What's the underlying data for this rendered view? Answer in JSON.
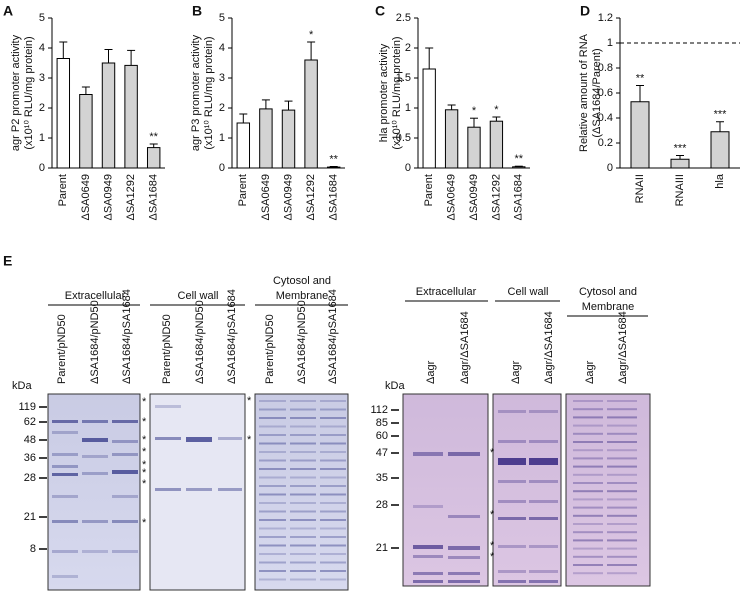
{
  "chart_data": [
    {
      "type": "bar",
      "panel": "A",
      "ylabel": [
        "agr P2 promoter activity",
        "(x10¹⁰ RLU/mg protein)"
      ],
      "categories": [
        "Parent",
        "ΔSA0649",
        "ΔSA0949",
        "ΔSA1292",
        "ΔSA1684"
      ],
      "values": [
        3.65,
        2.45,
        3.5,
        3.42,
        0.68
      ],
      "errors": [
        0.55,
        0.25,
        0.45,
        0.5,
        0.12
      ],
      "colors": [
        "#ffffff",
        "#d3d3d3",
        "#d3d3d3",
        "#d3d3d3",
        "#d3d3d3"
      ],
      "ylim": [
        0,
        5
      ],
      "yticks": [
        0,
        1,
        2,
        3,
        4,
        5
      ],
      "annotations": [
        null,
        null,
        null,
        null,
        "**"
      ]
    },
    {
      "type": "bar",
      "panel": "B",
      "ylabel": [
        "agr P3 promoter activity",
        "(x10¹⁰ RLU/mg protein)"
      ],
      "categories": [
        "Parent",
        "ΔSA0649",
        "ΔSA0949",
        "ΔSA1292",
        "ΔSA1684"
      ],
      "values": [
        1.5,
        1.97,
        1.93,
        3.6,
        0.03
      ],
      "errors": [
        0.3,
        0.3,
        0.3,
        0.6,
        0.02
      ],
      "colors": [
        "#ffffff",
        "#d3d3d3",
        "#d3d3d3",
        "#d3d3d3",
        "#d3d3d3"
      ],
      "ylim": [
        0,
        5
      ],
      "yticks": [
        0,
        1,
        2,
        3,
        4,
        5
      ],
      "annotations": [
        null,
        null,
        null,
        "*",
        "**"
      ]
    },
    {
      "type": "bar",
      "panel": "C",
      "ylabel": [
        "hla promoter activity",
        "(x10¹⁰ RLU/mg protein)"
      ],
      "categories": [
        "Parent",
        "ΔSA0649",
        "ΔSA0949",
        "ΔSA1292",
        "ΔSA1684"
      ],
      "values": [
        1.65,
        0.97,
        0.68,
        0.78,
        0.02
      ],
      "errors": [
        0.35,
        0.08,
        0.15,
        0.07,
        0.01
      ],
      "colors": [
        "#ffffff",
        "#d3d3d3",
        "#d3d3d3",
        "#d3d3d3",
        "#d3d3d3"
      ],
      "ylim": [
        0,
        2.5
      ],
      "yticks": [
        0,
        0.5,
        1,
        1.5,
        2,
        2.5
      ],
      "annotations": [
        null,
        null,
        "*",
        "*",
        "**"
      ]
    },
    {
      "type": "bar",
      "panel": "D",
      "ylabel": [
        "Relative amount of RNA",
        "(ΔSA1684/Parent)"
      ],
      "categories": [
        "RNAII",
        "RNAIII",
        "hla"
      ],
      "values": [
        0.53,
        0.07,
        0.29
      ],
      "errors": [
        0.13,
        0.03,
        0.08
      ],
      "colors": [
        "#d3d3d3",
        "#d3d3d3",
        "#d3d3d3"
      ],
      "ylim": [
        0,
        1.2
      ],
      "yticks": [
        0,
        0.2,
        0.4,
        0.6,
        0.8,
        1,
        1.2
      ],
      "annotations": [
        "**",
        "***",
        "***"
      ],
      "reference_line": 1
    }
  ],
  "panel_e": {
    "label": "E",
    "left": {
      "groups": [
        "Extracellular",
        "Cell wall",
        [
          "Cytosol and",
          "Membrane"
        ]
      ],
      "lanes": [
        "Parent/pND50",
        "ΔSA1684/pND50",
        "ΔSA1684/pSA1684",
        "Parent/pND50",
        "ΔSA1684/pND50",
        "ΔSA1684/pSA1684",
        "Parent/pND50",
        "ΔSA1684/pND50",
        "ΔSA1684/pSA1684"
      ],
      "unit": "kDa",
      "markers": [
        119,
        62,
        48,
        36,
        28,
        21,
        8
      ],
      "asterisks": [
        "*",
        "*",
        "*",
        "*",
        "*",
        "*",
        "*",
        "*",
        "*",
        "*"
      ]
    },
    "right": {
      "groups": [
        "Extracellular",
        "Cell wall",
        [
          "Cytosol and",
          "Membrane"
        ]
      ],
      "lanes": [
        "Δagr",
        "Δagr/ΔSA1684",
        "Δagr",
        "Δagr/ΔSA1684",
        "Δagr",
        "Δagr/ΔSA1684"
      ],
      "unit": "kDa",
      "markers": [
        112,
        85,
        60,
        47,
        35,
        28,
        21
      ],
      "asterisks": [
        "*",
        "*",
        "*",
        "*"
      ]
    }
  }
}
